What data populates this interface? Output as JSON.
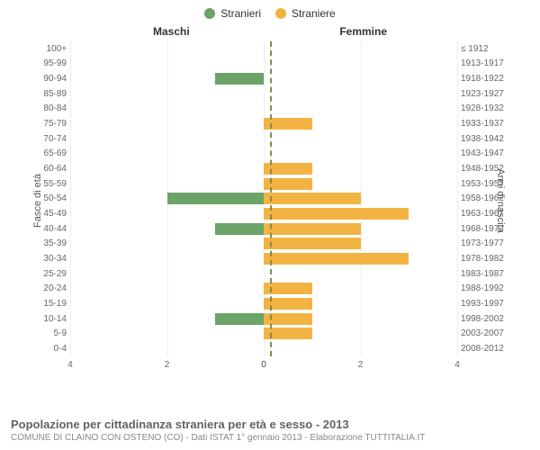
{
  "chart": {
    "type": "pyramid-bar",
    "legend": [
      {
        "label": "Stranieri",
        "color": "#6ba368"
      },
      {
        "label": "Straniere",
        "color": "#f3b342"
      }
    ],
    "column_headers": {
      "left": "Maschi",
      "right": "Femmine"
    },
    "y_axis_labels": {
      "left": "Fasce di età",
      "right": "Anni di nascita"
    },
    "x_axis": {
      "min": -4,
      "max": 4,
      "ticks": [
        4,
        2,
        0,
        0,
        2,
        4
      ],
      "tick_positions_pct": [
        0,
        25,
        50,
        50,
        75,
        100
      ]
    },
    "grid_positions_pct": [
      0,
      25,
      50,
      75,
      100
    ],
    "grid_color": "#eeeeee",
    "center_line_color": "#888855",
    "bar_colors": {
      "male": "#6ba368",
      "female": "#f3b342"
    },
    "max_value": 4,
    "background_color": "#ffffff",
    "label_fontsize": 10,
    "header_fontsize": 12,
    "rows": [
      {
        "age": "100+",
        "birth": "≤ 1912",
        "m": 0,
        "f": 0
      },
      {
        "age": "95-99",
        "birth": "1913-1917",
        "m": 0,
        "f": 0
      },
      {
        "age": "90-94",
        "birth": "1918-1922",
        "m": 1,
        "f": 0
      },
      {
        "age": "85-89",
        "birth": "1923-1927",
        "m": 0,
        "f": 0
      },
      {
        "age": "80-84",
        "birth": "1928-1932",
        "m": 0,
        "f": 0
      },
      {
        "age": "75-79",
        "birth": "1933-1937",
        "m": 0,
        "f": 1
      },
      {
        "age": "70-74",
        "birth": "1938-1942",
        "m": 0,
        "f": 0
      },
      {
        "age": "65-69",
        "birth": "1943-1947",
        "m": 0,
        "f": 0
      },
      {
        "age": "60-64",
        "birth": "1948-1952",
        "m": 0,
        "f": 1
      },
      {
        "age": "55-59",
        "birth": "1953-1957",
        "m": 0,
        "f": 1
      },
      {
        "age": "50-54",
        "birth": "1958-1962",
        "m": 2,
        "f": 2
      },
      {
        "age": "45-49",
        "birth": "1963-1967",
        "m": 0,
        "f": 3
      },
      {
        "age": "40-44",
        "birth": "1968-1972",
        "m": 1,
        "f": 2
      },
      {
        "age": "35-39",
        "birth": "1973-1977",
        "m": 0,
        "f": 2
      },
      {
        "age": "30-34",
        "birth": "1978-1982",
        "m": 0,
        "f": 3
      },
      {
        "age": "25-29",
        "birth": "1983-1987",
        "m": 0,
        "f": 0
      },
      {
        "age": "20-24",
        "birth": "1988-1992",
        "m": 0,
        "f": 1
      },
      {
        "age": "15-19",
        "birth": "1993-1997",
        "m": 0,
        "f": 1
      },
      {
        "age": "10-14",
        "birth": "1998-2002",
        "m": 1,
        "f": 1
      },
      {
        "age": "5-9",
        "birth": "2003-2007",
        "m": 0,
        "f": 1
      },
      {
        "age": "0-4",
        "birth": "2008-2012",
        "m": 0,
        "f": 0
      }
    ]
  },
  "footer": {
    "title": "Popolazione per cittadinanza straniera per età e sesso - 2013",
    "subtitle": "COMUNE DI CLAINO CON OSTENO (CO) - Dati ISTAT 1° gennaio 2013 - Elaborazione TUTTITALIA.IT"
  }
}
